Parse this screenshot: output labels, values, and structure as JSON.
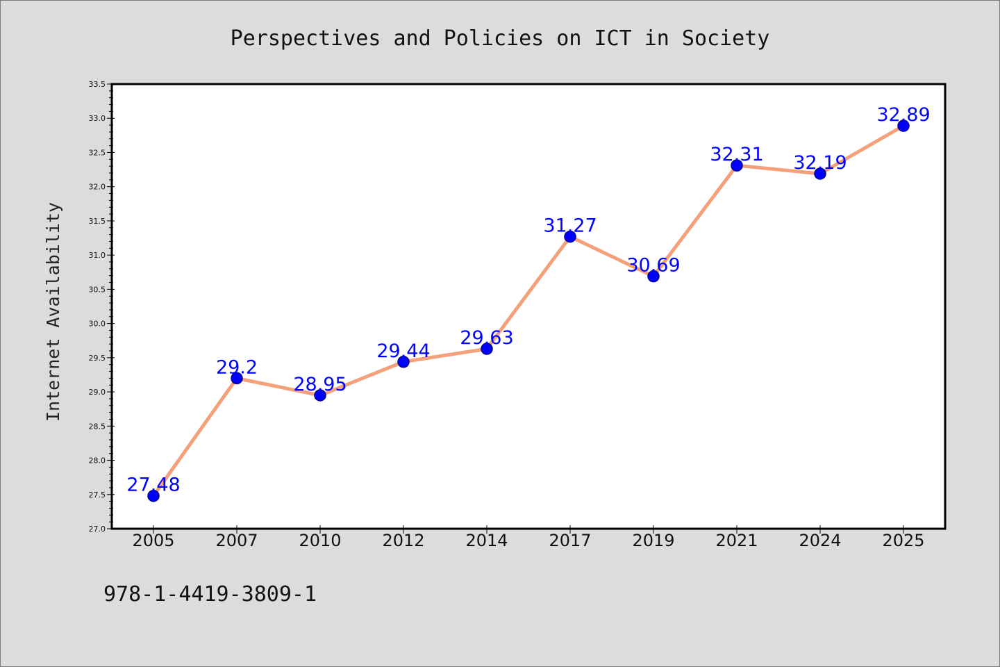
{
  "chart_data": {
    "type": "line",
    "title": "Perspectives and Policies on ICT in Society",
    "xlabel": "",
    "ylabel": "Internet Availability",
    "categories": [
      "2005",
      "2007",
      "2010",
      "2012",
      "2014",
      "2017",
      "2019",
      "2021",
      "2024",
      "2025"
    ],
    "series": [
      {
        "values": [
          27.48,
          29.2,
          28.95,
          29.44,
          29.63,
          31.27,
          30.69,
          32.31,
          32.19,
          32.89
        ],
        "labels": [
          "27.48",
          "29.2",
          "28.95",
          "29.44",
          "29.63",
          "31.27",
          "30.69",
          "32.31",
          "32.19",
          "32.89"
        ]
      }
    ],
    "ylim": [
      27.0,
      33.5
    ],
    "yticks": [
      "27.0",
      "27.5",
      "28.0",
      "28.5",
      "29.0",
      "29.5",
      "30.0",
      "30.5",
      "31.0",
      "31.5",
      "32.0",
      "32.5",
      "33.0",
      "33.5"
    ],
    "grid": false,
    "legend": "none",
    "colors": {
      "line": "#f4a07a",
      "marker": "#0000ff",
      "marker_edge": "#00008b",
      "label": "#0000ff",
      "background": "#dcdcdc",
      "plot_background": "#ffffff"
    }
  },
  "footer": {
    "isbn": "978-1-4419-3809-1"
  }
}
